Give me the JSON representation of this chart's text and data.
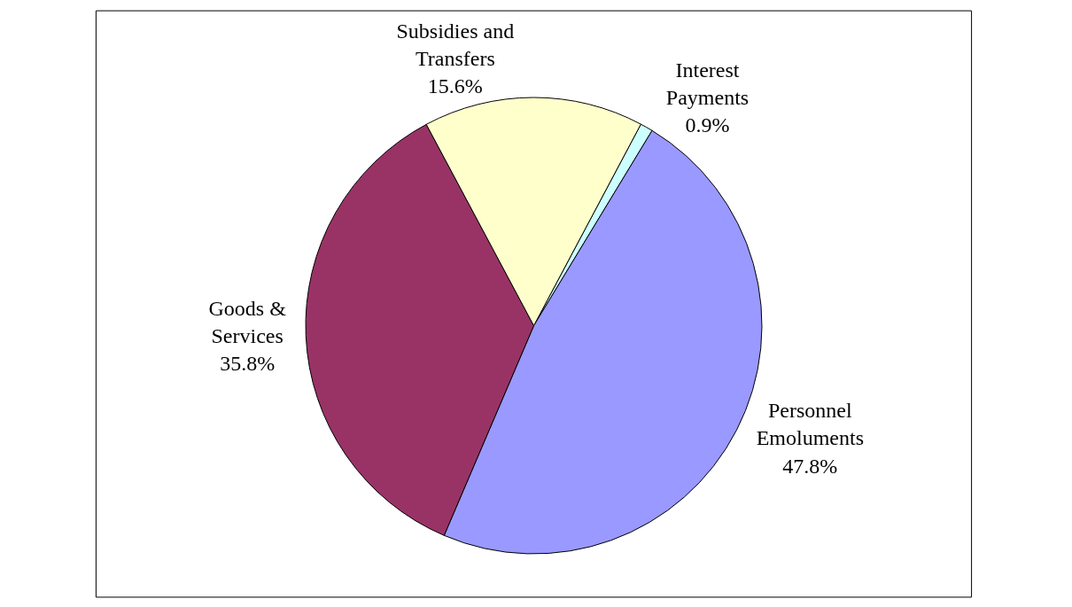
{
  "chart_data": {
    "type": "pie",
    "categories": [
      "Interest Payments",
      "Personnel Emoluments",
      "Goods & Services",
      "Subsidies and Transfers"
    ],
    "values": [
      0.9,
      47.8,
      35.8,
      15.6
    ],
    "colors": [
      "#ccffff",
      "#9999ff",
      "#993366",
      "#ffffcc"
    ],
    "value_labels": [
      "0.9%",
      "47.8%",
      "35.8%",
      "15.6%"
    ],
    "legend": false
  }
}
